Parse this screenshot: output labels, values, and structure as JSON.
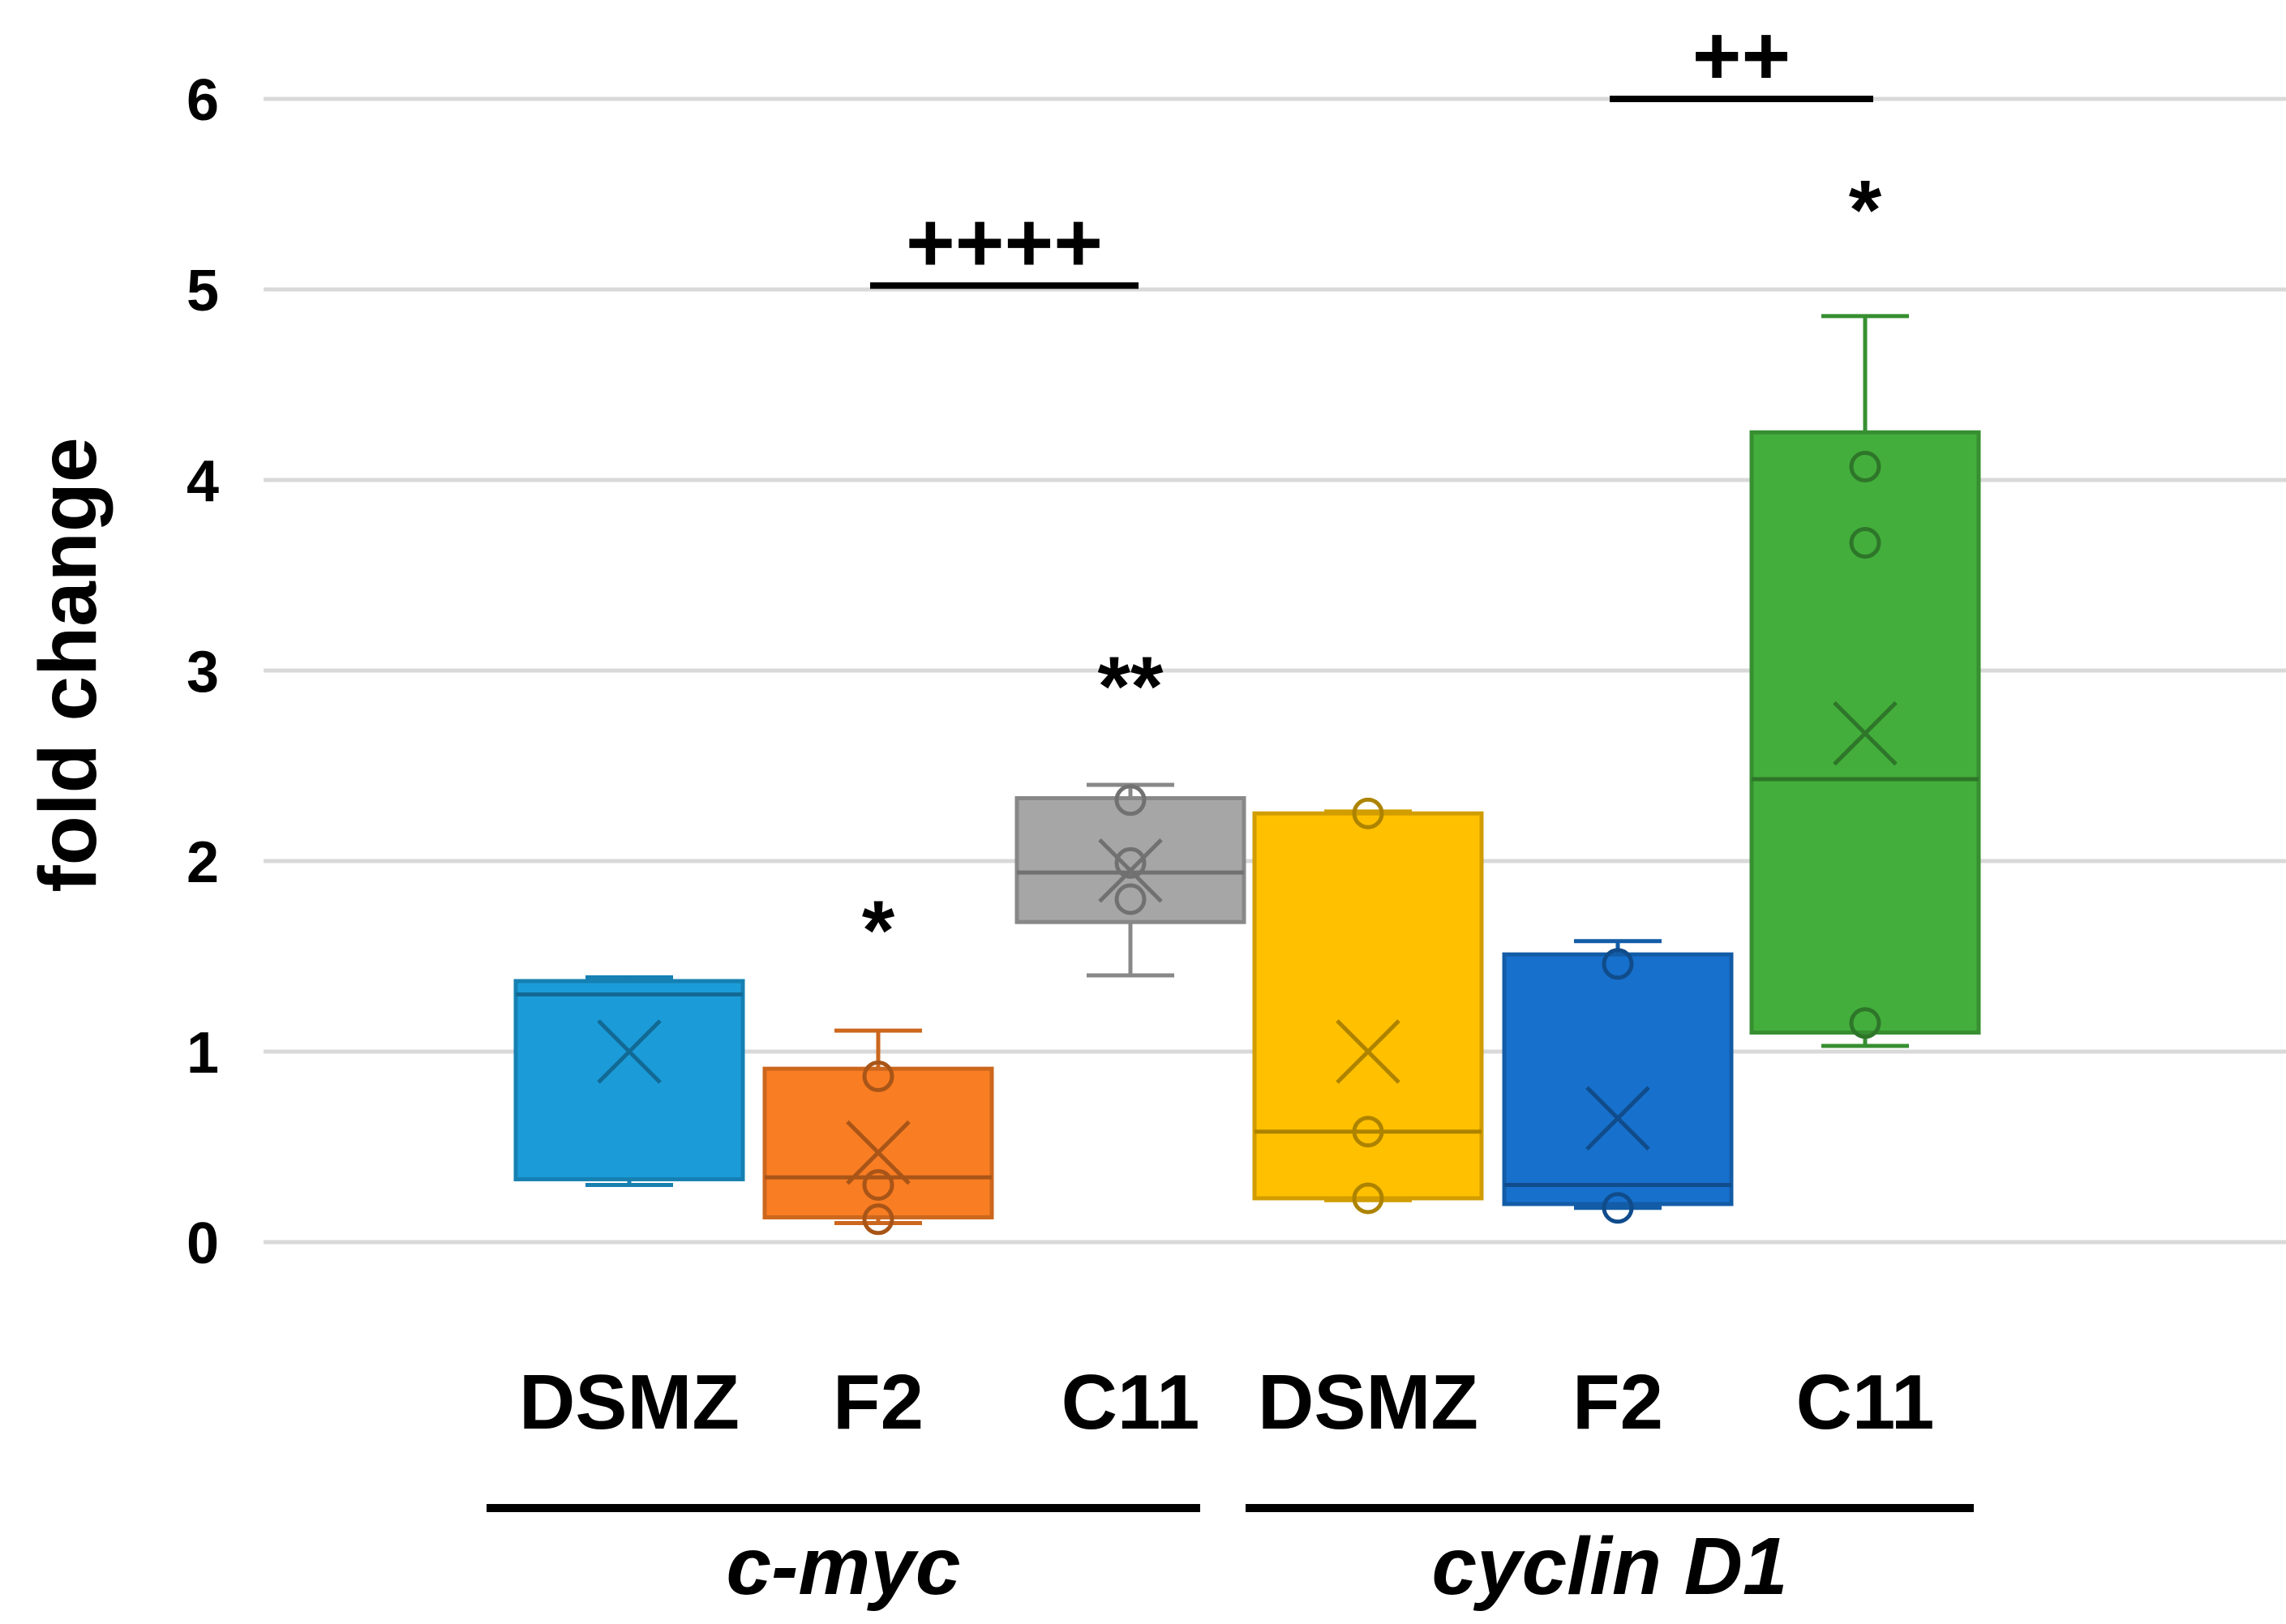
{
  "chart_data": {
    "type": "box",
    "title": "",
    "xlabel": "",
    "ylabel": "fold change",
    "ylim": [
      0,
      6
    ],
    "yticks": [
      "0",
      "1",
      "2",
      "3",
      "4",
      "5",
      "6"
    ],
    "grid": true,
    "groups": [
      {
        "name": "c-myc",
        "categories": [
          "DSMZ",
          "F2",
          "C11"
        ]
      },
      {
        "name": "cyclin D1",
        "categories": [
          "DSMZ",
          "F2",
          "C11"
        ]
      }
    ],
    "boxes": [
      {
        "group": "c-myc",
        "category": "DSMZ",
        "color": "#1B9CD9",
        "whisker_low": 0.3,
        "q1": 0.33,
        "median": 1.3,
        "q3": 1.37,
        "whisker_high": 1.39,
        "mean": 1.0,
        "points": []
      },
      {
        "group": "c-myc",
        "category": "F2",
        "color": "#F97D23",
        "whisker_low": 0.1,
        "q1": 0.13,
        "median": 0.34,
        "q3": 0.91,
        "whisker_high": 1.11,
        "mean": 0.47,
        "points": [
          0.87,
          0.3,
          0.12
        ]
      },
      {
        "group": "c-myc",
        "category": "C11",
        "color": "#A6A6A6",
        "whisker_low": 1.4,
        "q1": 1.68,
        "median": 1.94,
        "q3": 2.33,
        "whisker_high": 2.4,
        "mean": 1.95,
        "points": [
          2.32,
          1.99,
          1.8
        ]
      },
      {
        "group": "cyclin D1",
        "category": "DSMZ",
        "color": "#FFC000",
        "whisker_low": 0.22,
        "q1": 0.23,
        "median": 0.58,
        "q3": 2.25,
        "whisker_high": 2.26,
        "mean": 1.0,
        "points": [
          2.25,
          0.58,
          0.23
        ]
      },
      {
        "group": "cyclin D1",
        "category": "F2",
        "color": "#1770CC",
        "whisker_low": 0.18,
        "q1": 0.2,
        "median": 0.3,
        "q3": 1.51,
        "whisker_high": 1.58,
        "mean": 0.65,
        "points": [
          1.46,
          0.18
        ]
      },
      {
        "group": "cyclin D1",
        "category": "C11",
        "color": "#43AE3C",
        "whisker_low": 1.03,
        "q1": 1.1,
        "median": 2.43,
        "q3": 4.25,
        "whisker_high": 4.86,
        "mean": 2.67,
        "points": [
          4.07,
          3.67,
          1.15
        ]
      }
    ],
    "annotations": [
      {
        "text": "*",
        "box": 1,
        "y": 1.72
      },
      {
        "text": "**",
        "box": 2,
        "y": 3.0
      },
      {
        "text": "*",
        "box": 5,
        "y": 5.5
      }
    ],
    "brackets": [
      {
        "text": "++++",
        "from_box": 1,
        "to_box": 2,
        "y": 5.02
      },
      {
        "text": "++",
        "from_box": 4,
        "to_box": 5,
        "y": 6.0
      }
    ]
  }
}
